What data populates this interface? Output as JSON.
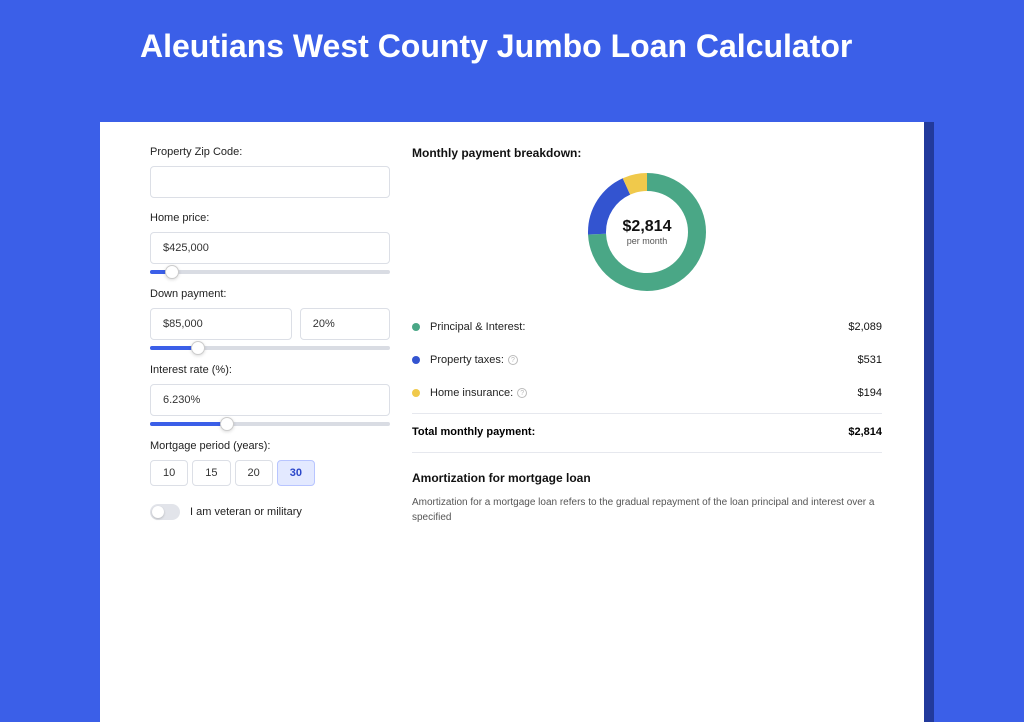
{
  "header": {
    "title": "Aleutians West County Jumbo Loan Calculator"
  },
  "colors": {
    "page_bg": "#3b5fe8",
    "panel_shadow": "#223a9c",
    "panel_bg": "#ffffff",
    "slider_fill": "#3b5fe8",
    "text": "#222222"
  },
  "form": {
    "zip": {
      "label": "Property Zip Code:",
      "value": ""
    },
    "price": {
      "label": "Home price:",
      "value": "$425,000",
      "slider_pct": 9
    },
    "down": {
      "label": "Down payment:",
      "amount": "$85,000",
      "percent": "20%",
      "slider_pct": 20
    },
    "rate": {
      "label": "Interest rate (%):",
      "value": "6.230%",
      "slider_pct": 32
    },
    "period": {
      "label": "Mortgage period (years):",
      "options": [
        "10",
        "15",
        "20",
        "30"
      ],
      "active": "30"
    },
    "veteran": {
      "label": "I am veteran or military",
      "checked": false
    }
  },
  "breakdown": {
    "title": "Monthly payment breakdown:",
    "center_amount": "$2,814",
    "center_sub": "per month",
    "donut": {
      "type": "donut",
      "radius": 50,
      "stroke_width": 18,
      "background": "#ffffff",
      "segments": [
        {
          "key": "principal_interest",
          "color": "#4aa786",
          "pct": 74.2
        },
        {
          "key": "property_taxes",
          "color": "#3354d0",
          "pct": 18.9
        },
        {
          "key": "home_insurance",
          "color": "#f0c94b",
          "pct": 6.9
        }
      ]
    },
    "items": [
      {
        "dot": "#4aa786",
        "label": "Principal & Interest:",
        "info": false,
        "value": "$2,089"
      },
      {
        "dot": "#3354d0",
        "label": "Property taxes:",
        "info": true,
        "value": "$531"
      },
      {
        "dot": "#f0c94b",
        "label": "Home insurance:",
        "info": true,
        "value": "$194"
      }
    ],
    "total": {
      "label": "Total monthly payment:",
      "value": "$2,814"
    }
  },
  "amortization": {
    "title": "Amortization for mortgage loan",
    "text": "Amortization for a mortgage loan refers to the gradual repayment of the loan principal and interest over a specified"
  }
}
